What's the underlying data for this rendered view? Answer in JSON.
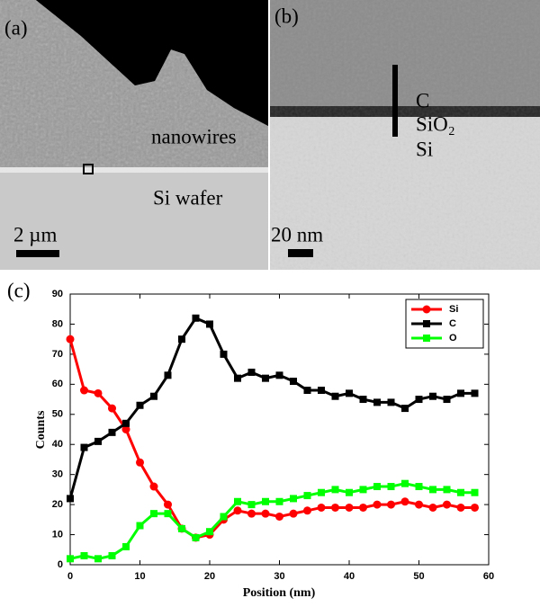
{
  "panels": {
    "a": {
      "label": "(a)",
      "nanowires": "nanowires",
      "wafer": "Si wafer",
      "scale": "2 µm"
    },
    "b": {
      "label": "(b)",
      "layer_c": "C",
      "layer_oxide": "SiO₂",
      "layer_si": "Si",
      "scale": "20 nm"
    },
    "c": {
      "label": "(c)"
    }
  },
  "chart_data": {
    "type": "line",
    "xlabel": "Position (nm)",
    "ylabel": "Counts",
    "x": [
      0,
      2,
      4,
      6,
      8,
      10,
      12,
      14,
      16,
      18,
      20,
      22,
      24,
      26,
      28,
      30,
      32,
      34,
      36,
      38,
      40,
      42,
      44,
      46,
      48,
      50,
      52,
      54,
      56,
      58
    ],
    "series": [
      {
        "name": "Si",
        "color": "#ff0000",
        "marker": "circle",
        "values": [
          75,
          58,
          57,
          52,
          45,
          34,
          26,
          20,
          12,
          9,
          10,
          15,
          18,
          17,
          17,
          16,
          17,
          18,
          19,
          19,
          19,
          19,
          20,
          20,
          21,
          20,
          19,
          20,
          19,
          19
        ]
      },
      {
        "name": "C",
        "color": "#000000",
        "marker": "square",
        "values": [
          22,
          39,
          41,
          44,
          47,
          53,
          56,
          63,
          75,
          82,
          80,
          70,
          62,
          64,
          62,
          63,
          61,
          58,
          58,
          56,
          57,
          55,
          54,
          54,
          52,
          55,
          56,
          55,
          57,
          57
        ]
      },
      {
        "name": "O",
        "color": "#00ff00",
        "marker": "square",
        "values": [
          2,
          3,
          2,
          3,
          6,
          13,
          17,
          17,
          12,
          9,
          11,
          16,
          21,
          20,
          21,
          21,
          22,
          23,
          24,
          25,
          24,
          25,
          26,
          26,
          27,
          26,
          25,
          25,
          24,
          24
        ]
      }
    ],
    "xlim": [
      0,
      60
    ],
    "xticks": [
      0,
      10,
      20,
      30,
      40,
      50,
      60
    ],
    "ylim": [
      0,
      90
    ],
    "yticks": [
      0,
      10,
      20,
      30,
      40,
      50,
      60,
      70,
      80,
      90
    ],
    "legend": "top-right"
  }
}
